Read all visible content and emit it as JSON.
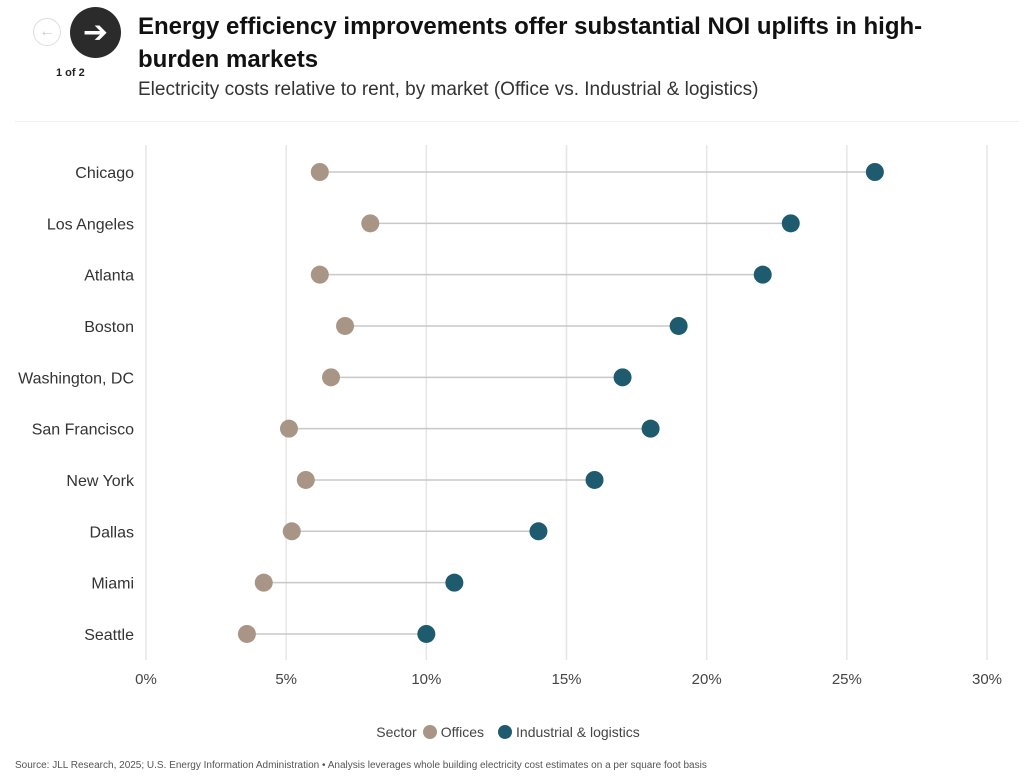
{
  "nav": {
    "prev_icon": "arrow-left-icon",
    "next_icon": "arrow-right-icon",
    "pager": "1 of 2"
  },
  "header": {
    "title": "Energy efficiency improvements offer substantial NOI uplifts in high-burden markets",
    "subtitle": "Electricity costs relative to rent, by market (Office vs. Industrial & logistics)"
  },
  "chart_data": {
    "type": "dumbbell",
    "categories": [
      "Chicago",
      "Los Angeles",
      "Atlanta",
      "Boston",
      "Washington, DC",
      "San Francisco",
      "New York",
      "Dallas",
      "Miami",
      "Seattle"
    ],
    "series": [
      {
        "name": "Offices",
        "color": "#a89585",
        "values": [
          6.2,
          8.0,
          6.2,
          7.1,
          6.6,
          5.1,
          5.7,
          5.2,
          4.2,
          3.6
        ]
      },
      {
        "name": "Industrial & logistics",
        "color": "#1f5b6e",
        "values": [
          26,
          23,
          22,
          19,
          17,
          18,
          16,
          14,
          11,
          10
        ]
      }
    ],
    "xlim": [
      0,
      30
    ],
    "xticks": [
      "0%",
      "5%",
      "10%",
      "15%",
      "20%",
      "25%",
      "30%"
    ],
    "grid": true,
    "legend_title": "Sector",
    "legend_position": "bottom"
  },
  "source": "Source: JLL Research, 2025; U.S. Energy Information Administration • Analysis leverages whole building electricity cost estimates on a per square foot basis"
}
